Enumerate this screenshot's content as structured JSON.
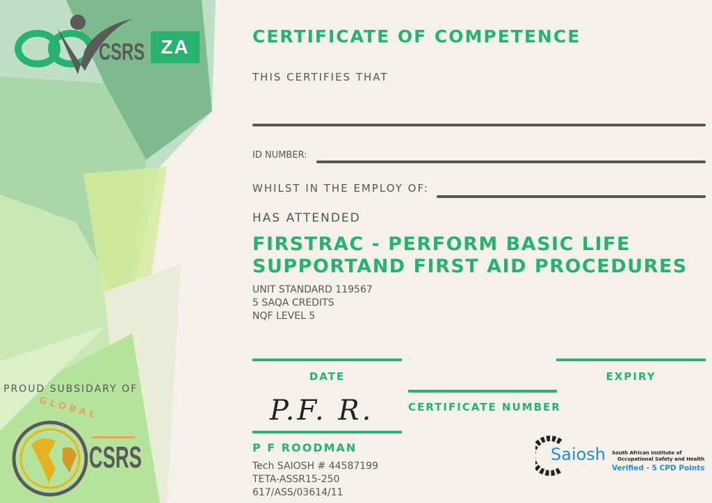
{
  "logo": {
    "brand": "CSRS",
    "region": "ZA"
  },
  "title": "CERTIFICATE OF COMPETENCE",
  "certifies": "THIS CERTIFIES THAT",
  "id_label": "ID NUMBER:",
  "employ_label": "WHILST IN THE EMPLOY OF:",
  "attended": "HAS ATTENDED",
  "course_line1": "FIRSTRAC - PERFORM BASIC LIFE",
  "course_line2": "SUPPORTAND FIRST AID PROCEDURES",
  "details": [
    "UNIT STANDARD 119567",
    "5 SAQA CREDITS",
    "NQF LEVEL 5"
  ],
  "date_label": "DATE",
  "expiry_label": "EXPIRY",
  "cert_number_label": "CERTIFICATE NUMBER",
  "signature": "P.F. R.",
  "signer": {
    "name": "P F ROODMAN",
    "lines": [
      "Tech SAIOSH # 44587199",
      "TETA-ASSR15-250",
      "617/ASS/03614/11"
    ]
  },
  "subsidiary": {
    "label": "PROUD SUBSIDARY OF",
    "logo_top": "GLOBAL",
    "logo_text": "CSRS"
  },
  "saiosh": {
    "name": "Saiosh",
    "line1": "South African Institute of",
    "line2": "Occupational Safety and Health",
    "verified": "Verified - 5 CPD Points"
  },
  "colors": {
    "accent": "#25b36f",
    "text": "#555555",
    "background": "#f5f1ea",
    "saiosh_blue": "#1c8fd6"
  }
}
